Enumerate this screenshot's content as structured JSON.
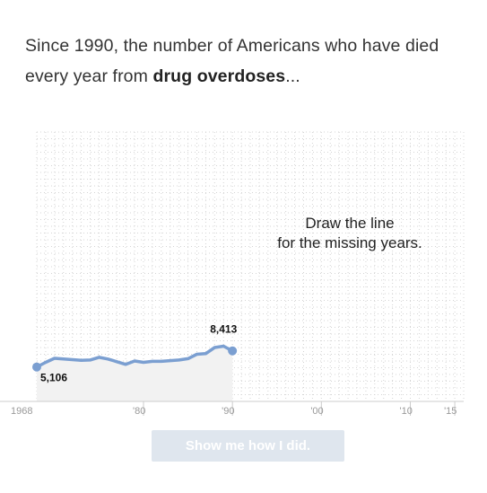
{
  "headline": {
    "part1": "Since 1990, the number of Americans who have died every year from ",
    "bold": "drug overdoses",
    "part2": "..."
  },
  "chart_data": {
    "type": "line",
    "x": [
      1968,
      1969,
      1970,
      1971,
      1972,
      1973,
      1974,
      1975,
      1976,
      1977,
      1978,
      1979,
      1980,
      1981,
      1982,
      1983,
      1984,
      1985,
      1986,
      1987,
      1988,
      1989,
      1990
    ],
    "series": [
      {
        "values": [
          5106,
          5800,
          6400,
          6300,
          6200,
          6100,
          6150,
          6550,
          6300,
          5900,
          5500,
          6000,
          5800,
          5950,
          5950,
          6050,
          6150,
          6350,
          7000,
          7100,
          8000,
          8200,
          7500
        ]
      }
    ],
    "labels": {
      "start_value": "5,106",
      "peak_value": "8,413"
    },
    "xlim": [
      1968,
      2016
    ],
    "ylim": [
      0,
      40000
    ],
    "x_ticks": [
      {
        "year": 1968,
        "label": "1968"
      },
      {
        "year": 1980,
        "label": "'80"
      },
      {
        "year": 1990,
        "label": "'90"
      },
      {
        "year": 2000,
        "label": "'00"
      },
      {
        "year": 2010,
        "label": "'10"
      },
      {
        "year": 2015,
        "label": "'15"
      }
    ],
    "prompt_line1": "Draw the line",
    "prompt_line2": "for the missing years.",
    "grid": true,
    "line_color": "#7b9fd1"
  },
  "button": {
    "label": "Show me how I did."
  }
}
